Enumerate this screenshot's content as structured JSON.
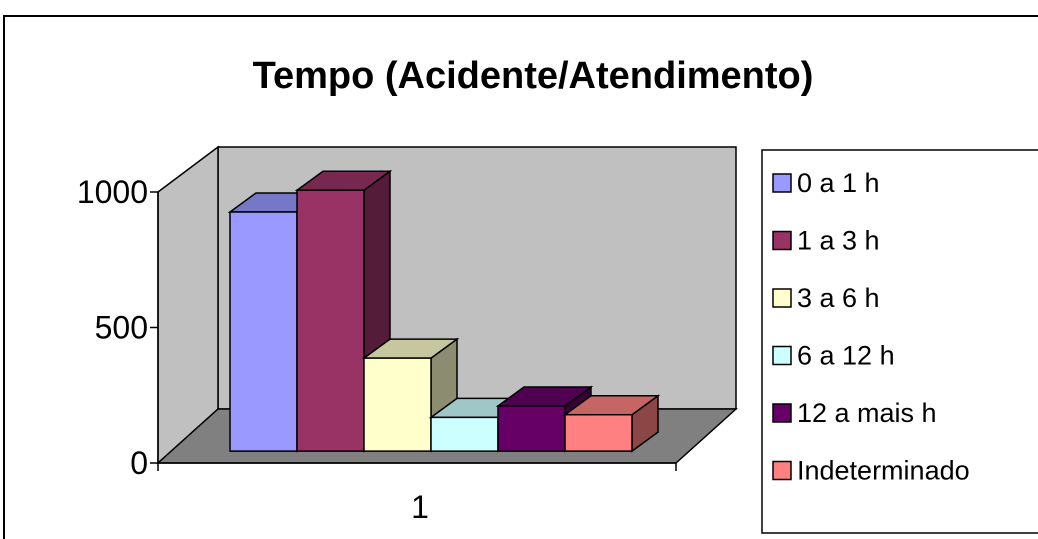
{
  "chart_data": {
    "type": "bar",
    "title": "Tempo (Acidente/Atendimento)",
    "categories": [
      "1"
    ],
    "series": [
      {
        "name": "0 a 1 h",
        "values": [
          900
        ],
        "color": "#9999FF"
      },
      {
        "name": "1 a 3 h",
        "values": [
          982
        ],
        "color": "#993366"
      },
      {
        "name": "3 a 6 h",
        "values": [
          350
        ],
        "color": "#FFFFCC"
      },
      {
        "name": "6 a 12 h",
        "values": [
          127
        ],
        "color": "#CCFFFF"
      },
      {
        "name": "12 a mais h",
        "values": [
          170
        ],
        "color": "#660066"
      },
      {
        "name": "Indeterminado",
        "values": [
          137
        ],
        "color": "#FF8080"
      }
    ],
    "yticks": [
      "0",
      "500",
      "1000"
    ],
    "ylim": [
      0,
      1000
    ],
    "xlabel": "",
    "ylabel": "",
    "grid": false,
    "legend": "right",
    "style": {
      "wall_color": "#C0C0C0",
      "floor_color": "#808080",
      "projection": "3d"
    }
  }
}
